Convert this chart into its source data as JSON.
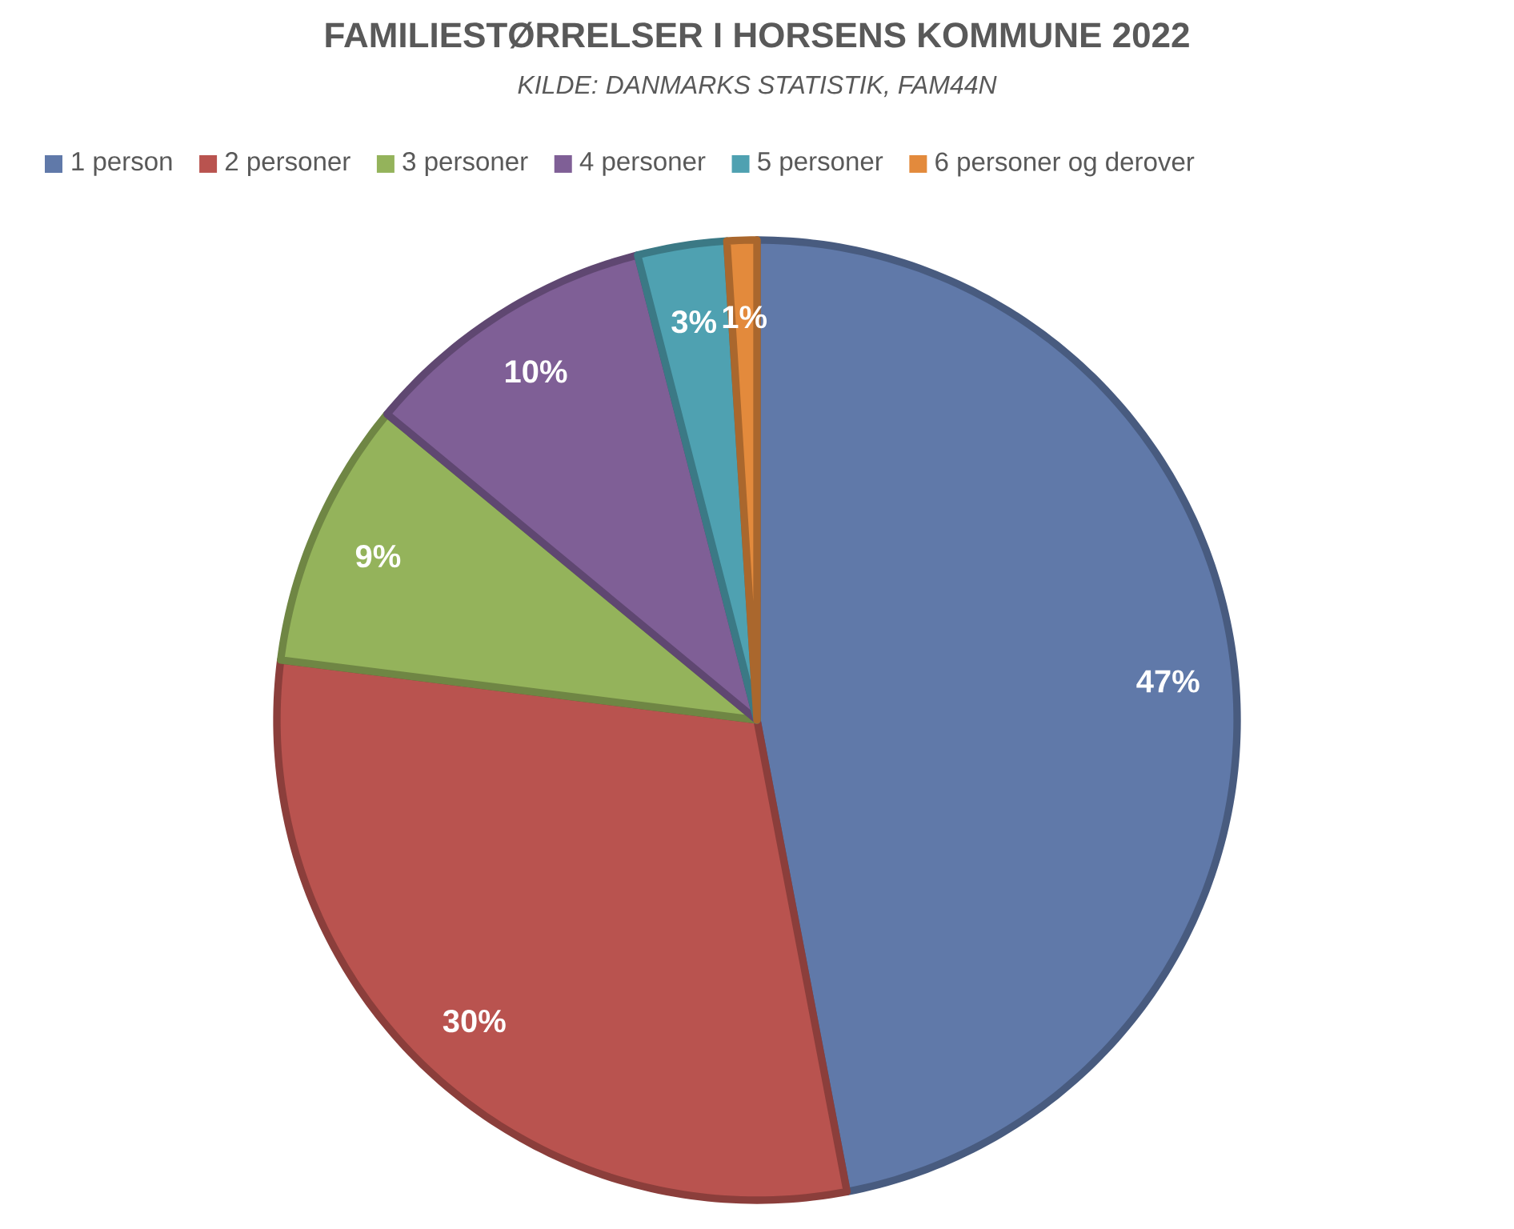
{
  "chart_data": {
    "type": "pie",
    "title": "FAMILIESTØRRELSER I HORSENS KOMMUNE 2022",
    "subtitle": "KILDE: DANMARKS STATISTIK, FAM44N",
    "categories": [
      "1 person",
      "2 personer",
      "3 personer",
      "4 personer",
      "5 personer",
      "6 personer og derover"
    ],
    "values": [
      47,
      30,
      9,
      10,
      3,
      1
    ],
    "value_labels": [
      "47%",
      "30%",
      "9%",
      "10%",
      "3%",
      "1%"
    ],
    "colors": [
      "#6079a9",
      "#b9534f",
      "#94b35b",
      "#7f5f96",
      "#4fa1b1",
      "#e38a3c"
    ],
    "legend": "top"
  }
}
